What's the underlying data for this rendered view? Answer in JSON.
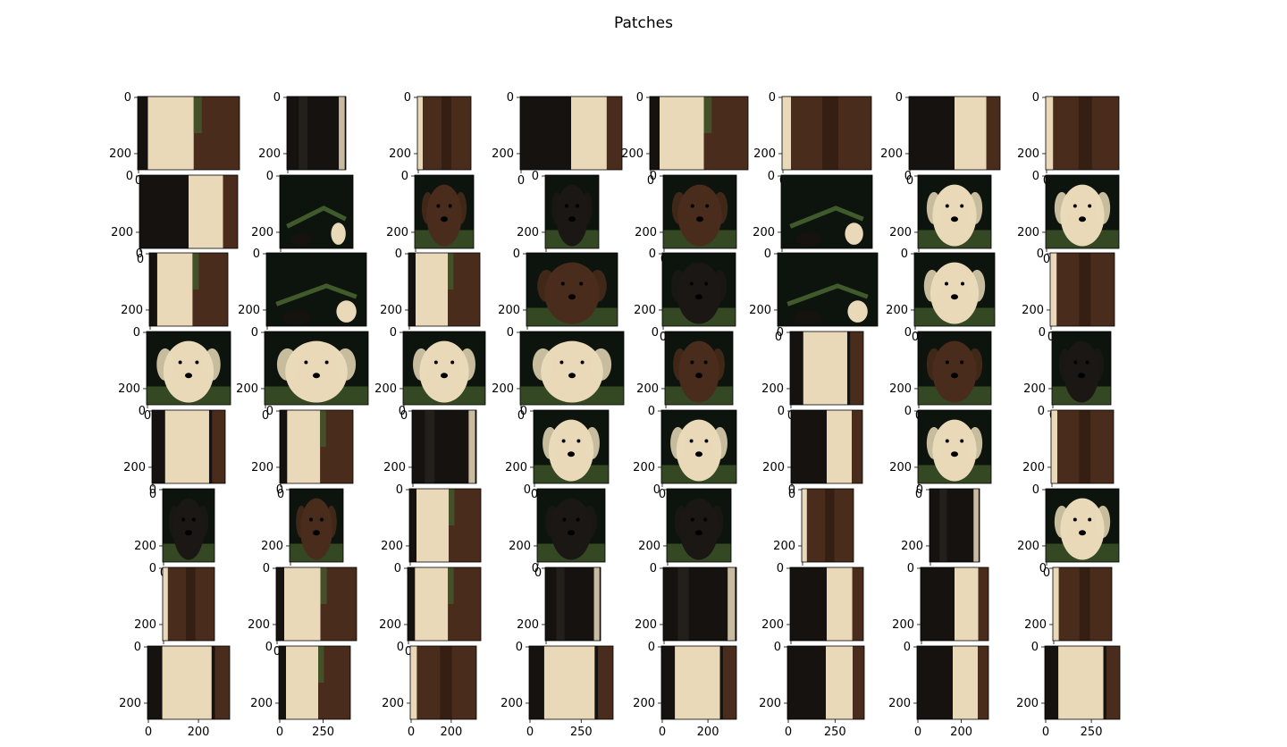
{
  "figure": {
    "title": "Patches",
    "background": "#ffffff",
    "rows": 8,
    "cols": 8,
    "axis_color": "#000000",
    "palette": {
      "black": "#15120f",
      "chocolate": "#4a2c1c",
      "cream": "#e9d9b9",
      "foliage": "#415a2c",
      "dark_bg": "#0d140d"
    },
    "tiles": [
      [
        "cream-brown",
        "black",
        "brown",
        "black-cream",
        "cream-brown",
        "brown",
        "black-cream",
        "brown"
      ],
      [
        "black-cream",
        "dark-foliage",
        "brown-face",
        "black-face",
        "brown-face",
        "dark-foliage",
        "cream-face",
        "cream-face"
      ],
      [
        "cream-brown",
        "dark-foliage",
        "cream-brown",
        "brown-face",
        "black-face",
        "dark-foliage",
        "cream-face",
        "brown"
      ],
      [
        "cream-face",
        "cream-face",
        "cream-face",
        "cream-face",
        "brown-face",
        "cream",
        "brown-face",
        "black-face"
      ],
      [
        "cream",
        "cream-brown",
        "black",
        "cream-face",
        "cream-face",
        "black-cream",
        "cream-face",
        "brown"
      ],
      [
        "black-face",
        "brown-face",
        "cream-brown",
        "black-face",
        "black-face",
        "brown",
        "black",
        "cream-face"
      ],
      [
        "brown",
        "cream-brown",
        "cream-brown",
        "black",
        "black",
        "black-cream",
        "black-cream",
        "brown"
      ],
      [
        "cream",
        "cream-brown",
        "brown",
        "cream",
        "cream",
        "black-cream",
        "black-cream",
        "cream"
      ]
    ]
  },
  "axes": {
    "y_tick_labels": [
      "0",
      "200"
    ],
    "x_tick_labels": [
      "0",
      "200",
      "250"
    ]
  }
}
